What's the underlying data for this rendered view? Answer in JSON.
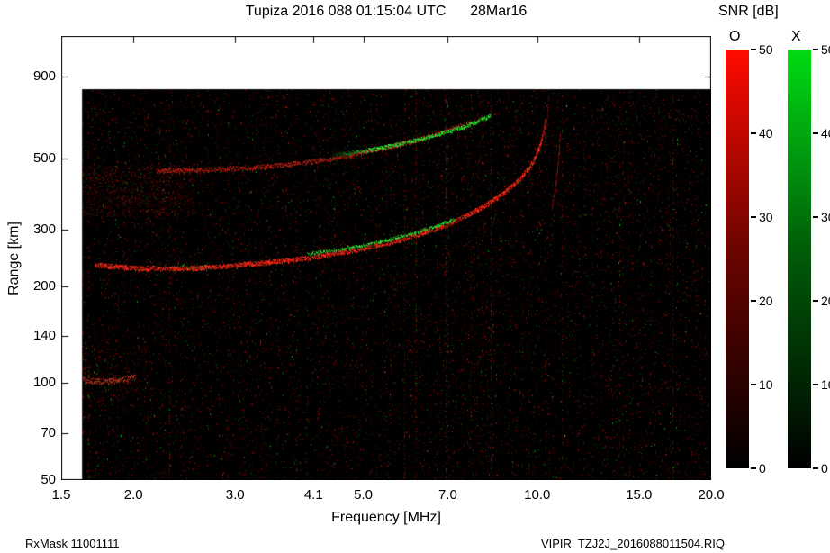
{
  "footer": {
    "rx_mask": "RxMask 11001111",
    "filename": "VIPIR  TZJ2J_2016088011504.RIQ"
  },
  "chart_data": {
    "type": "heatmap",
    "subtype": "ionogram",
    "title": "Tupiza 2016 088 01:15:04 UTC      28Mar16",
    "snr_title": "SNR [dB]",
    "xlabel": "Frequency [MHz]",
    "ylabel": "Range [km]",
    "x_scale": "log",
    "y_scale": "log",
    "x_range": [
      1.5,
      20
    ],
    "y_range": [
      50,
      1200
    ],
    "x_ticks": {
      "values": [
        1.5,
        2.0,
        3.0,
        4.1,
        5.0,
        7.0,
        10.0,
        15.0,
        20.0
      ],
      "labels": [
        "1.5",
        "2.0",
        "3.0",
        "4.1",
        "5.0",
        "7.0",
        "10.0",
        "15.0",
        "20.0"
      ]
    },
    "y_ticks": {
      "values": [
        900,
        500,
        300,
        200,
        140,
        100,
        70,
        50
      ],
      "labels": [
        "900",
        "500",
        "300",
        "200",
        "140",
        "100",
        "70",
        "50"
      ]
    },
    "data_region": {
      "f_min": 1.63,
      "f_max": 20,
      "r_min": 50,
      "r_max": 820
    },
    "background_color": "#000000",
    "colorbars": [
      {
        "label": "O",
        "top_color": "#ff0a00",
        "min": 0,
        "max": 50,
        "tick_labels": [
          "50",
          "40",
          "30",
          "20",
          "10",
          "0"
        ]
      },
      {
        "label": "X",
        "top_color": "#00dc14",
        "min": 0,
        "max": 50,
        "tick_labels": [
          "50",
          "40",
          "30",
          "20",
          "10",
          "0"
        ]
      }
    ],
    "traces": [
      {
        "name": "f-region-o-mode",
        "mode": "O",
        "color": "#ff2814",
        "width": 3,
        "density": 1.6,
        "base": 1,
        "fade_above_r": 560,
        "points": [
          [
            1.72,
            233
          ],
          [
            2.0,
            228
          ],
          [
            2.3,
            227
          ],
          [
            2.6,
            228
          ],
          [
            3.0,
            232
          ],
          [
            3.4,
            237
          ],
          [
            3.8,
            242
          ],
          [
            4.2,
            248
          ],
          [
            4.6,
            255
          ],
          [
            5.0,
            262
          ],
          [
            5.4,
            270
          ],
          [
            5.8,
            279
          ],
          [
            6.2,
            289
          ],
          [
            6.6,
            300
          ],
          [
            7.0,
            312
          ],
          [
            7.4,
            326
          ],
          [
            7.8,
            342
          ],
          [
            8.2,
            360
          ],
          [
            8.6,
            381
          ],
          [
            9.0,
            406
          ],
          [
            9.4,
            437
          ],
          [
            9.7,
            468
          ],
          [
            9.9,
            498
          ],
          [
            10.05,
            530
          ],
          [
            10.18,
            568
          ],
          [
            10.28,
            614
          ],
          [
            10.35,
            662
          ]
        ]
      },
      {
        "name": "f-region-x-mode",
        "mode": "X",
        "color": "#30f03c",
        "width": 2,
        "density": 1.0,
        "base": 0.95,
        "points": [
          [
            4.0,
            252
          ],
          [
            4.4,
            258
          ],
          [
            4.8,
            265
          ],
          [
            5.2,
            272
          ],
          [
            5.6,
            281
          ],
          [
            6.0,
            290
          ],
          [
            6.4,
            300
          ],
          [
            6.8,
            311
          ],
          [
            7.2,
            324
          ]
        ]
      },
      {
        "name": "f-region-x-asymptote",
        "mode": "X",
        "color": "#b41e14",
        "width": 1.5,
        "density": 0.7,
        "base": 0.75,
        "points": [
          [
            10.62,
            352
          ],
          [
            10.75,
            402
          ],
          [
            10.85,
            462
          ],
          [
            10.92,
            532
          ],
          [
            10.97,
            605
          ]
        ]
      },
      {
        "name": "second-hop-o-mode",
        "mode": "O",
        "color": "#e62814",
        "width": 3,
        "density": 1.2,
        "base": 0.8,
        "fade_after_f": 6.8,
        "points": [
          [
            2.2,
            458
          ],
          [
            2.5,
            459
          ],
          [
            2.8,
            462
          ],
          [
            3.1,
            466
          ],
          [
            3.4,
            472
          ],
          [
            3.7,
            479
          ],
          [
            4.0,
            487
          ],
          [
            4.3,
            496
          ],
          [
            4.6,
            506
          ],
          [
            4.9,
            517
          ],
          [
            5.2,
            528
          ],
          [
            5.5,
            540
          ],
          [
            5.8,
            553
          ],
          [
            6.1,
            566
          ],
          [
            6.4,
            580
          ],
          [
            6.7,
            595
          ],
          [
            7.0,
            610
          ],
          [
            7.4,
            632
          ],
          [
            7.8,
            655
          ],
          [
            8.1,
            672
          ]
        ]
      },
      {
        "name": "second-hop-x-mode",
        "mode": "X",
        "color": "#2eea38",
        "width": 2.5,
        "density": 1.2,
        "base": 1,
        "fadein_before_f": 5.2,
        "points": [
          [
            4.4,
            510
          ],
          [
            4.8,
            521
          ],
          [
            5.2,
            533
          ],
          [
            5.6,
            547
          ],
          [
            6.0,
            562
          ],
          [
            6.4,
            578
          ],
          [
            6.8,
            596
          ],
          [
            7.2,
            614
          ],
          [
            7.6,
            634
          ],
          [
            8.0,
            658
          ],
          [
            8.3,
            678
          ]
        ]
      },
      {
        "name": "second-hop-asymptote",
        "mode": "O",
        "color": "#96160c",
        "width": 1.5,
        "density": 0.6,
        "base": 0.55,
        "points": [
          [
            10.3,
            560
          ],
          [
            10.38,
            632
          ],
          [
            10.44,
            702
          ],
          [
            10.48,
            780
          ]
        ]
      },
      {
        "name": "e-region-echo",
        "mode": "O",
        "color": "#d23c1e",
        "width": 4,
        "density": 1.5,
        "base": 0.85,
        "points": [
          [
            1.64,
            103
          ],
          [
            1.75,
            101
          ],
          [
            1.88,
            102
          ],
          [
            2.02,
            105
          ]
        ]
      }
    ],
    "diffuse": [
      {
        "name": "spread-f-patch",
        "f": [
          1.63,
          2.55
        ],
        "r": [
          330,
          475
        ],
        "color": "red",
        "n": 1200,
        "vmax": 125
      },
      {
        "name": "spread-f-patch-green",
        "f": [
          1.63,
          2.5
        ],
        "r": [
          330,
          475
        ],
        "color": "green",
        "n": 80,
        "vmax": 120
      },
      {
        "name": "e-region-halo",
        "f": [
          1.63,
          2.15
        ],
        "r": [
          88,
          132
        ],
        "color": "red",
        "n": 300,
        "vmax": 140
      },
      {
        "name": "e-region-green",
        "f": [
          1.63,
          1.85
        ],
        "r": [
          86,
          135
        ],
        "color": "green",
        "n": 50,
        "vmax": 180
      },
      {
        "name": "trace-green-specks",
        "f": [
          2.2,
          2.75
        ],
        "r": [
          225,
          235
        ],
        "color": "green",
        "n": 45,
        "vmax": 235
      }
    ]
  }
}
